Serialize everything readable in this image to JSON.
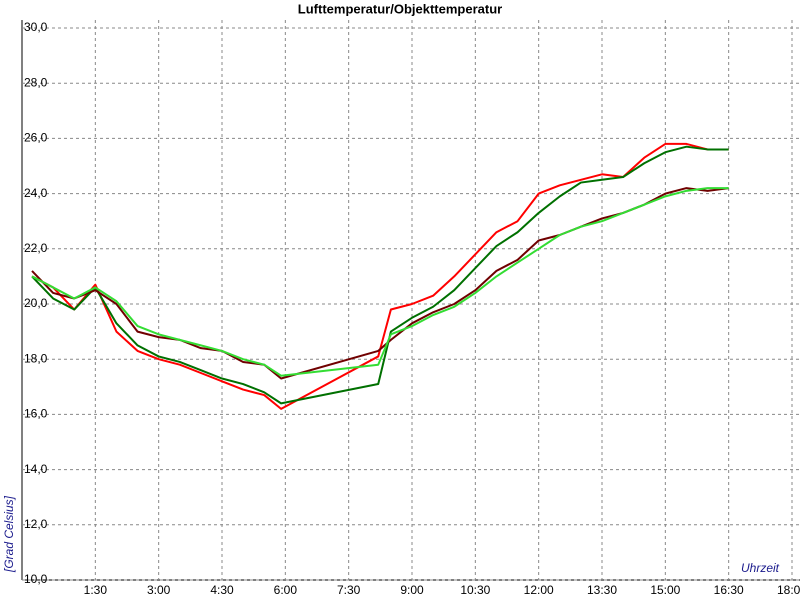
{
  "chart_data": {
    "type": "line",
    "title": "Lufttemperatur/Objekttemperatur",
    "y_label": "[Grad Celsius]",
    "x_label": "Uhrzeit",
    "x": [
      0,
      0.5,
      1,
      1.5,
      2,
      2.5,
      3,
      3.5,
      4,
      4.5,
      5,
      5.5,
      5.9,
      8.2,
      8.5,
      9,
      9.5,
      10,
      10.5,
      11,
      11.5,
      12,
      12.5,
      13,
      13.5,
      14,
      14.5,
      15,
      15.5,
      16,
      16.5
    ],
    "series": [
      {
        "color": "#ff0000",
        "values": [
          21.0,
          20.6,
          19.8,
          20.7,
          19.0,
          18.3,
          18.0,
          17.8,
          17.5,
          17.2,
          16.9,
          16.7,
          16.2,
          18.1,
          19.8,
          20.0,
          20.3,
          21.0,
          21.8,
          22.6,
          23.0,
          24.0,
          24.3,
          24.5,
          24.7,
          24.6,
          25.3,
          25.8,
          25.8,
          25.6,
          25.6
        ]
      },
      {
        "color": "#007000",
        "values": [
          21.0,
          20.2,
          19.8,
          20.6,
          19.3,
          18.5,
          18.1,
          17.9,
          17.6,
          17.3,
          17.1,
          16.8,
          16.4,
          17.1,
          19.0,
          19.5,
          19.9,
          20.5,
          21.3,
          22.1,
          22.6,
          23.3,
          23.9,
          24.4,
          24.5,
          24.6,
          25.1,
          25.5,
          25.7,
          25.6,
          25.6
        ]
      },
      {
        "color": "#700000",
        "values": [
          21.2,
          20.4,
          20.2,
          20.5,
          20.0,
          19.0,
          18.8,
          18.7,
          18.4,
          18.3,
          17.9,
          17.8,
          17.3,
          18.3,
          18.7,
          19.3,
          19.7,
          20.0,
          20.5,
          21.2,
          21.6,
          22.3,
          22.5,
          22.8,
          23.1,
          23.3,
          23.6,
          24.0,
          24.2,
          24.1,
          24.2
        ]
      },
      {
        "color": "#33dd33",
        "values": [
          21.0,
          20.6,
          20.2,
          20.6,
          20.1,
          19.2,
          18.9,
          18.7,
          18.5,
          18.3,
          18.0,
          17.8,
          17.4,
          17.8,
          18.9,
          19.2,
          19.6,
          19.9,
          20.4,
          21.0,
          21.5,
          22.0,
          22.5,
          22.8,
          23.0,
          23.3,
          23.6,
          23.9,
          24.1,
          24.2,
          24.2
        ]
      }
    ],
    "xlim": [
      0,
      18
    ],
    "xticks": [
      {
        "value": 1.5,
        "label": "1:30"
      },
      {
        "value": 3,
        "label": "3:00"
      },
      {
        "value": 4.5,
        "label": "4:30"
      },
      {
        "value": 6,
        "label": "6:00"
      },
      {
        "value": 7.5,
        "label": "7:30"
      },
      {
        "value": 9,
        "label": "9:00"
      },
      {
        "value": 10.5,
        "label": "10:30"
      },
      {
        "value": 12,
        "label": "12:00"
      },
      {
        "value": 13.5,
        "label": "13:30"
      },
      {
        "value": 15,
        "label": "15:00"
      },
      {
        "value": 16.5,
        "label": "16:30"
      },
      {
        "value": 18,
        "label": "18:00"
      }
    ],
    "ylim": [
      10,
      30
    ],
    "yticks": [
      {
        "value": 10,
        "label": "10,0"
      },
      {
        "value": 12,
        "label": "12,0"
      },
      {
        "value": 14,
        "label": "14,0"
      },
      {
        "value": 16,
        "label": "16,0"
      },
      {
        "value": 18,
        "label": "18,0"
      },
      {
        "value": 20,
        "label": "20,0"
      },
      {
        "value": 22,
        "label": "22,0"
      },
      {
        "value": 24,
        "label": "24,0"
      },
      {
        "value": 26,
        "label": "26,0"
      },
      {
        "value": 28,
        "label": "28,0"
      },
      {
        "value": 30,
        "label": "30,0"
      }
    ],
    "grid": true
  }
}
